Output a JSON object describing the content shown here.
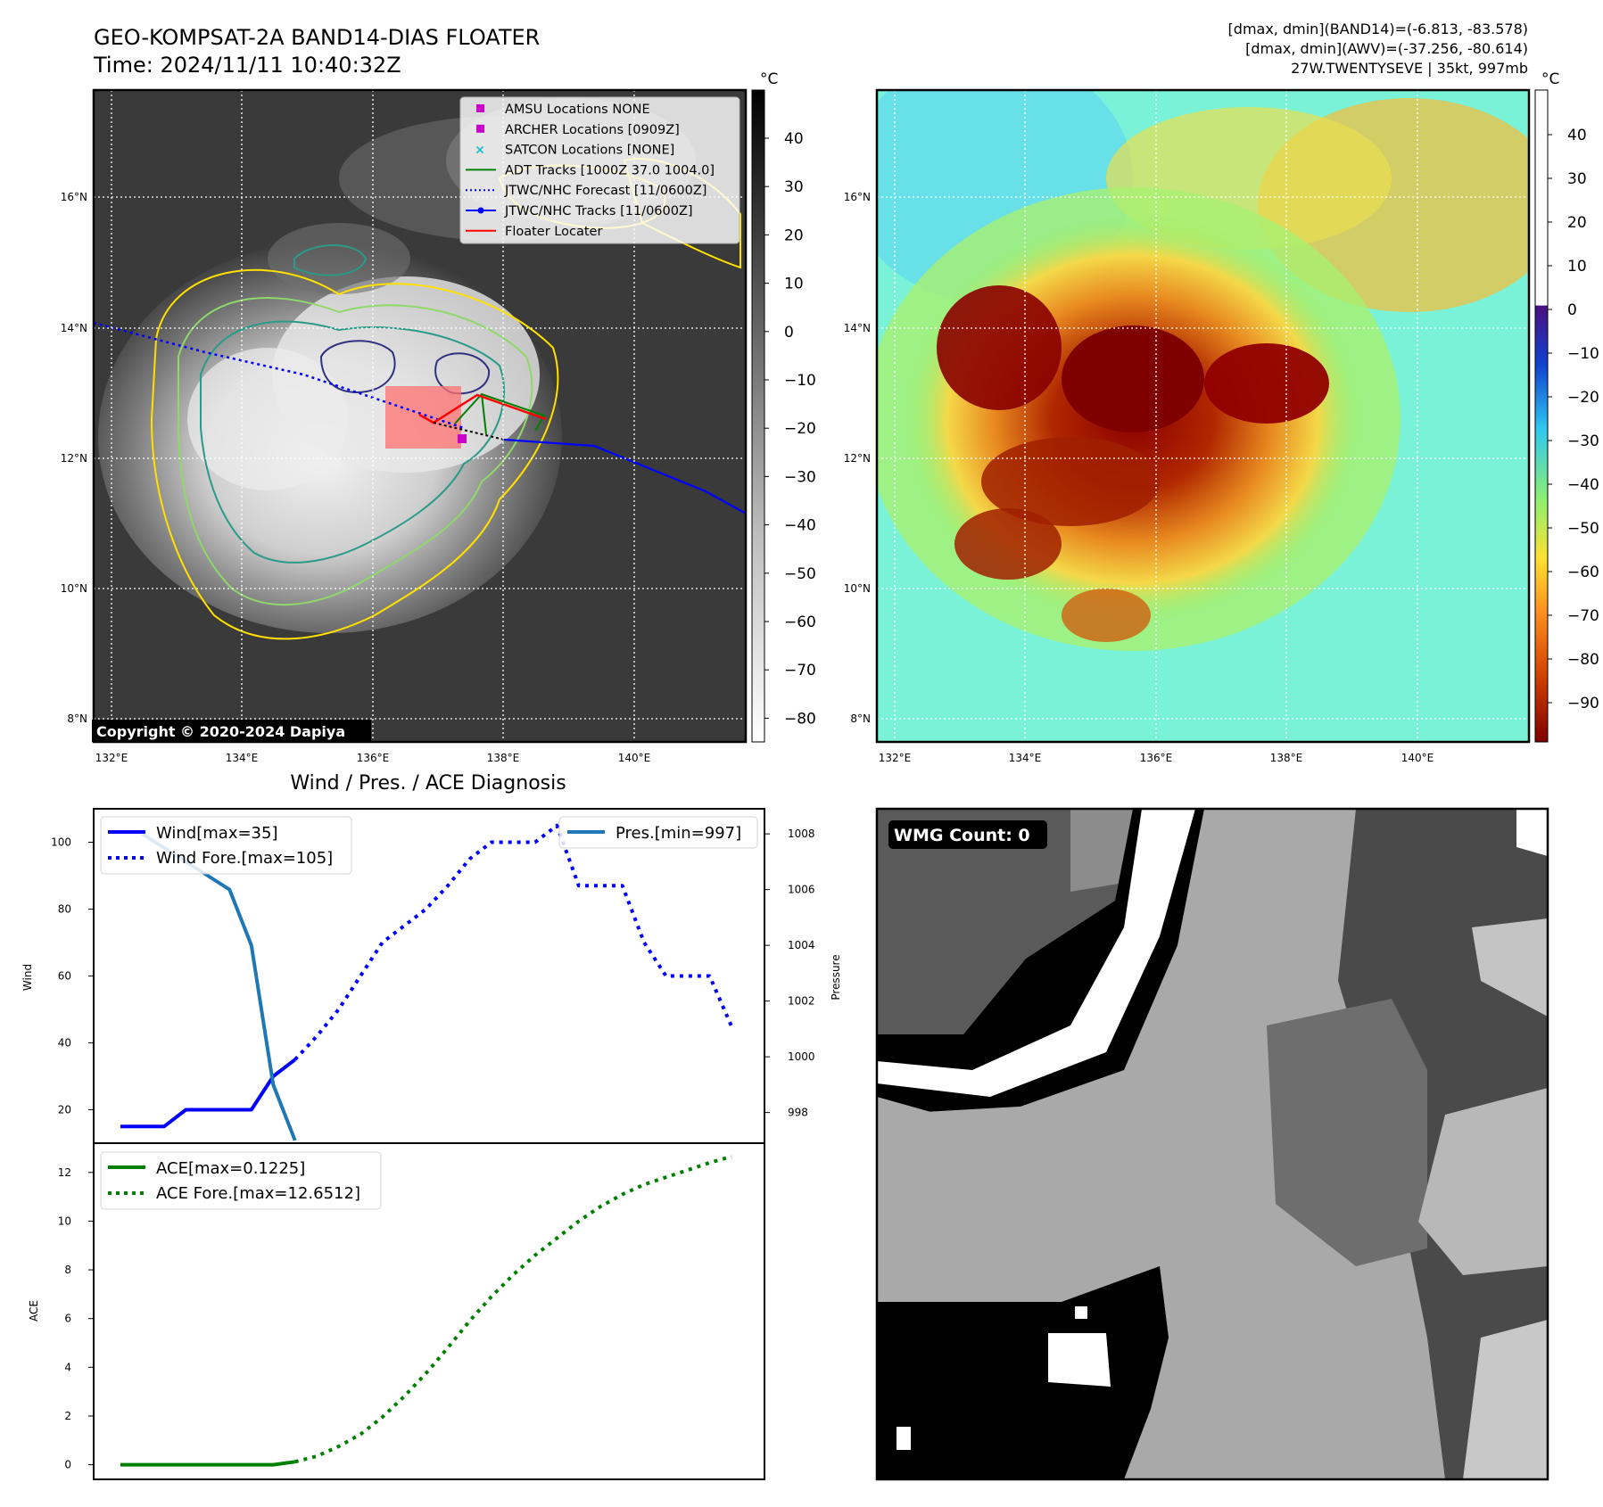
{
  "header": {
    "title": "GEO-KOMPSAT-2A BAND14-DIAS FLOATER",
    "time": "Time: 2024/11/11 10:40:32Z",
    "stats": [
      "[dmax, dmin](BAND14)=(-6.813, -83.578)",
      "[dmax, dmin](AWV)=(-37.256, -80.614)",
      "27W.TWENTYSEVE | 35kt, 997mb"
    ]
  },
  "map": {
    "lon_ticks": [
      "132°E",
      "134°E",
      "136°E",
      "138°E",
      "140°E"
    ],
    "lat_ticks": [
      "16°N",
      "14°N",
      "12°N",
      "10°N",
      "8°N"
    ],
    "copyright": "Copyright © 2020-2024 Dapiya",
    "legend": [
      {
        "label": "AMSU Locations NONE",
        "color": "#cc00cc",
        "kind": "square"
      },
      {
        "label": "ARCHER Locations [0909Z]",
        "color": "#cc00cc",
        "kind": "square"
      },
      {
        "label": "SATCON Locations [NONE]",
        "color": "#17becf",
        "kind": "cross"
      },
      {
        "label": "ADT Tracks [1000Z 37.0 1004.0]",
        "color": "#008000",
        "kind": "line"
      },
      {
        "label": "JTWC/NHC Forecast [11/0600Z]",
        "color": "#0000ff",
        "kind": "dotted"
      },
      {
        "label": "JTWC/NHC Tracks [11/0600Z]",
        "color": "#0000ff",
        "kind": "line-dot"
      },
      {
        "label": "Floater Locater",
        "color": "#ff0000",
        "kind": "line"
      }
    ],
    "colorbar_unit": "°C",
    "cb1_ticks": [
      "40",
      "30",
      "20",
      "10",
      "0",
      "−10",
      "−20",
      "−30",
      "−40",
      "−50",
      "−60",
      "−70",
      "−80"
    ],
    "cb2_ticks": [
      "40",
      "30",
      "20",
      "10",
      "0",
      "−10",
      "−20",
      "−30",
      "−40",
      "−50",
      "−60",
      "−70",
      "−80",
      "−90"
    ]
  },
  "chart_data": [
    {
      "type": "line",
      "title": "Wind / Pres. / ACE Diagnosis",
      "ylabel": "Wind",
      "ylabel_right": "Pressure",
      "ylim": [
        10,
        110
      ],
      "ylim_right": [
        996.9,
        1008.9
      ],
      "yticks": [
        20,
        40,
        60,
        80,
        100
      ],
      "yticks_right": [
        998,
        1000,
        1002,
        1004,
        1006,
        1008
      ],
      "series": [
        {
          "name": "Wind[max=35]",
          "color": "#0000ff",
          "style": "solid",
          "x": [
            0,
            2,
            3,
            4,
            5,
            6,
            7,
            8
          ],
          "values": [
            15,
            15,
            20,
            20,
            20,
            20,
            30,
            35
          ]
        },
        {
          "name": "Wind Fore.[max=105]",
          "color": "#0000ff",
          "style": "dotted",
          "x": [
            8,
            9,
            10,
            11,
            12,
            13,
            14,
            15,
            16,
            17,
            18,
            19,
            20,
            21,
            22,
            23,
            24,
            25,
            26,
            27,
            28
          ],
          "values": [
            35,
            42,
            50,
            60,
            70,
            75,
            80,
            87,
            95,
            100,
            100,
            100,
            105,
            87,
            87,
            87,
            70,
            60,
            60,
            60,
            45
          ]
        },
        {
          "name": "Pres.[min=997]",
          "color": "#1f77b4",
          "style": "solid",
          "axis": "right",
          "x": [
            1,
            2,
            3,
            4,
            5,
            6,
            7,
            8
          ],
          "values": [
            1008,
            1007.5,
            1007,
            1006.5,
            1006,
            1004,
            999,
            997
          ]
        }
      ]
    },
    {
      "type": "line",
      "ylabel": "ACE",
      "ylim": [
        -0.6,
        13.2
      ],
      "yticks": [
        0,
        2,
        4,
        6,
        8,
        10,
        12
      ],
      "series": [
        {
          "name": "ACE[max=0.1225]",
          "color": "#008000",
          "style": "solid",
          "x": [
            0,
            2,
            4,
            6,
            7,
            8
          ],
          "values": [
            0,
            0,
            0,
            0,
            0,
            0.1225
          ]
        },
        {
          "name": "ACE Fore.[max=12.6512]",
          "color": "#008000",
          "style": "dotted",
          "x": [
            8,
            9,
            10,
            11,
            12,
            13,
            14,
            15,
            16,
            17,
            18,
            19,
            20,
            21,
            22,
            23,
            24,
            25,
            26,
            27,
            28
          ],
          "values": [
            0.12,
            0.35,
            0.75,
            1.25,
            1.95,
            2.8,
            3.75,
            4.8,
            5.9,
            6.9,
            7.8,
            8.6,
            9.3,
            10.0,
            10.6,
            11.1,
            11.5,
            11.8,
            12.1,
            12.4,
            12.65
          ]
        }
      ]
    }
  ],
  "wmg": {
    "label": "WMG Count: 0"
  }
}
